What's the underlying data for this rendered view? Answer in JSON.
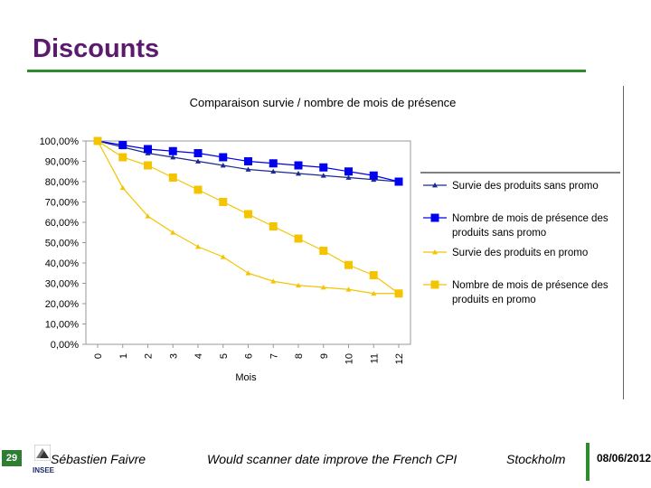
{
  "slide": {
    "title": "Discounts"
  },
  "footer": {
    "page_number": "29",
    "author": "Sébastien Faivre",
    "presentation": "Would scanner date improve the French CPI",
    "location": "Stockholm",
    "date": "08/06/2012",
    "logo_text": "INSEE"
  },
  "colors": {
    "title": "#5b1a6e",
    "accent_green": "#2e8b2e",
    "blue": "#0000ee",
    "navy": "#1a2a8e",
    "yellow": "#f5c400",
    "plot_bg": "#ffffff"
  },
  "chart_data": {
    "type": "line",
    "title": "Comparaison survie / nombre de mois de présence",
    "xlabel": "Mois",
    "ylabel": "",
    "x": [
      "0",
      "1",
      "2",
      "3",
      "4",
      "5",
      "6",
      "7",
      "8",
      "9",
      "10",
      "11",
      "12"
    ],
    "y_ticks": [
      "0,00%",
      "10,00%",
      "20,00%",
      "30,00%",
      "40,00%",
      "50,00%",
      "60,00%",
      "70,00%",
      "80,00%",
      "90,00%",
      "100,00%"
    ],
    "ylim": [
      0,
      100
    ],
    "grid": false,
    "legend_position": "right",
    "series": [
      {
        "name": "Survie des produits sans promo",
        "marker": "triangle",
        "color": "#1a2a8e",
        "values": [
          100,
          97,
          94,
          92,
          90,
          88,
          86,
          85,
          84,
          83,
          82,
          81,
          80
        ]
      },
      {
        "name": "Nombre de mois de présence des produits sans promo",
        "legend_lines": [
          "Nombre de mois de présence des",
          "produits sans promo"
        ],
        "marker": "square",
        "color": "#0000ee",
        "values": [
          100,
          98,
          96,
          95,
          94,
          92,
          90,
          89,
          88,
          87,
          85,
          83,
          80
        ]
      },
      {
        "name": "Survie des produits en promo",
        "marker": "triangle",
        "color": "#f5c400",
        "values": [
          100,
          77,
          63,
          55,
          48,
          43,
          35,
          31,
          29,
          28,
          27,
          25,
          25
        ]
      },
      {
        "name": "Nombre de mois de présence des produits en promo",
        "legend_lines": [
          "Nombre de mois de présence des",
          "produits en promo"
        ],
        "marker": "square",
        "color": "#f5c400",
        "values": [
          100,
          92,
          88,
          82,
          76,
          70,
          64,
          58,
          52,
          46,
          39,
          34,
          25
        ]
      }
    ]
  }
}
